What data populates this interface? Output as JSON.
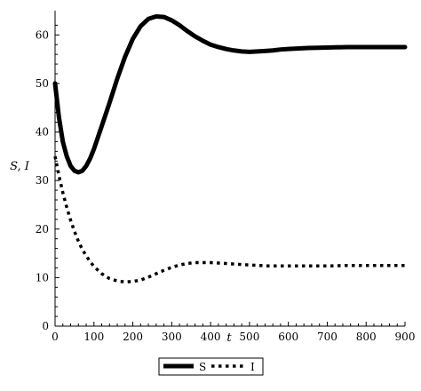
{
  "chart_data": {
    "type": "line",
    "xlabel": "t",
    "ylabel": "S, I",
    "xlim": [
      0,
      900
    ],
    "ylim": [
      0,
      65
    ],
    "xticks": [
      0,
      100,
      200,
      300,
      400,
      500,
      600,
      700,
      800,
      900
    ],
    "yticks": [
      0,
      10,
      20,
      30,
      40,
      50,
      60
    ],
    "grid": false,
    "legend_position": "bottom-center",
    "series": [
      {
        "name": "S",
        "style": "solid",
        "color": "#000000",
        "x": [
          0,
          10,
          20,
          30,
          40,
          50,
          60,
          70,
          80,
          90,
          100,
          120,
          140,
          160,
          180,
          200,
          220,
          240,
          260,
          280,
          300,
          320,
          340,
          360,
          380,
          400,
          420,
          440,
          460,
          480,
          500,
          520,
          540,
          560,
          580,
          600,
          650,
          700,
          750,
          800,
          850,
          900
        ],
        "y": [
          50,
          43,
          38,
          35,
          33,
          32,
          31.7,
          32,
          33,
          34.5,
          36.5,
          41.2,
          46,
          51,
          55.5,
          59.2,
          61.8,
          63.3,
          63.8,
          63.7,
          63,
          62,
          60.8,
          59.7,
          58.8,
          58,
          57.5,
          57.1,
          56.8,
          56.6,
          56.5,
          56.6,
          56.7,
          56.8,
          57,
          57.1,
          57.3,
          57.4,
          57.5,
          57.5,
          57.5,
          57.5
        ]
      },
      {
        "name": "I",
        "style": "dotted",
        "color": "#000000",
        "x": [
          0,
          10,
          20,
          30,
          40,
          50,
          60,
          70,
          80,
          90,
          100,
          120,
          140,
          160,
          180,
          200,
          220,
          240,
          260,
          280,
          300,
          320,
          340,
          360,
          380,
          400,
          420,
          440,
          460,
          480,
          500,
          550,
          600,
          650,
          700,
          750,
          800,
          850,
          900
        ],
        "y": [
          35,
          31,
          27.5,
          24.5,
          21.8,
          19.5,
          17.5,
          15.8,
          14.5,
          13.3,
          12.3,
          10.8,
          9.8,
          9.3,
          9.1,
          9.2,
          9.5,
          10.1,
          10.8,
          11.5,
          12.1,
          12.6,
          12.9,
          13.1,
          13.1,
          13.1,
          13,
          12.9,
          12.8,
          12.7,
          12.6,
          12.4,
          12.4,
          12.4,
          12.4,
          12.5,
          12.5,
          12.5,
          12.5
        ]
      }
    ]
  }
}
